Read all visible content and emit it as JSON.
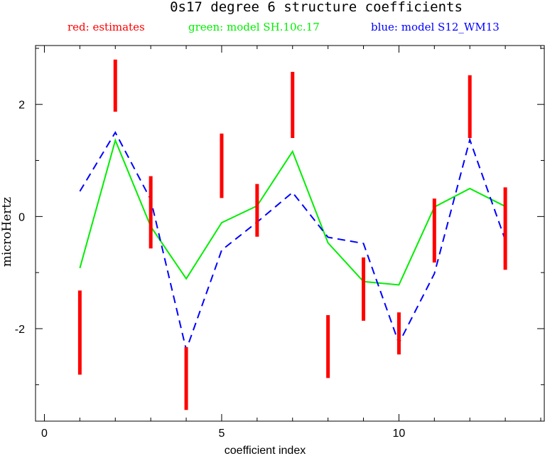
{
  "chart_data": {
    "type": "line",
    "title": "0s17 degree 6 structure coefficients",
    "legend_entries": [
      {
        "label": "red: estimates",
        "color": "#ff0000"
      },
      {
        "label": "green: model SH.10c.17",
        "color": "#00ee00"
      },
      {
        "label": "blue: model S12_WM13",
        "color": "#0000ff"
      }
    ],
    "xlabel": "coefficient index",
    "ylabel": "microHertz",
    "xlim": [
      -0.25,
      14.1
    ],
    "ylim": [
      -3.65,
      3.05
    ],
    "x_ticks": [
      0,
      5,
      10
    ],
    "x_tick_labels": [
      "0",
      "5",
      "10"
    ],
    "y_ticks": [
      -2,
      0,
      2
    ],
    "y_tick_labels": [
      "-2",
      "0",
      "2"
    ],
    "x_minor_step": 1,
    "y_minor_step": 1,
    "grid": false,
    "x": [
      1,
      2,
      3,
      4,
      5,
      6,
      7,
      8,
      9,
      10,
      11,
      12,
      13
    ],
    "estimates": [
      {
        "x": 1,
        "low": -2.82,
        "high": -1.32
      },
      {
        "x": 2,
        "low": 1.87,
        "high": 2.8
      },
      {
        "x": 3,
        "low": -0.57,
        "high": 0.72
      },
      {
        "x": 4,
        "low": -3.45,
        "high": -2.33
      },
      {
        "x": 5,
        "low": 0.33,
        "high": 1.48
      },
      {
        "x": 6,
        "low": -0.36,
        "high": 0.58
      },
      {
        "x": 7,
        "low": 1.4,
        "high": 2.58
      },
      {
        "x": 8,
        "low": -2.88,
        "high": -1.76
      },
      {
        "x": 9,
        "low": -1.86,
        "high": -0.73
      },
      {
        "x": 10,
        "low": -2.46,
        "high": -1.71
      },
      {
        "x": 11,
        "low": -0.82,
        "high": 0.32
      },
      {
        "x": 12,
        "low": 1.4,
        "high": 2.52
      },
      {
        "x": 13,
        "low": -0.95,
        "high": 0.52
      }
    ],
    "series": [
      {
        "name": "model SH.10c.17",
        "color": "#00ee00",
        "dash": "solid",
        "values": [
          -0.92,
          1.36,
          -0.18,
          -1.11,
          -0.11,
          0.19,
          1.16,
          -0.47,
          -1.16,
          -1.22,
          0.17,
          0.5,
          0.18
        ]
      },
      {
        "name": "model S12_WM13",
        "color": "#0000ff",
        "dash": "dashed",
        "values": [
          0.45,
          1.5,
          0.3,
          -2.38,
          -0.6,
          -0.1,
          0.43,
          -0.37,
          -0.48,
          -2.26,
          -1.02,
          1.37,
          -0.42
        ]
      }
    ]
  }
}
